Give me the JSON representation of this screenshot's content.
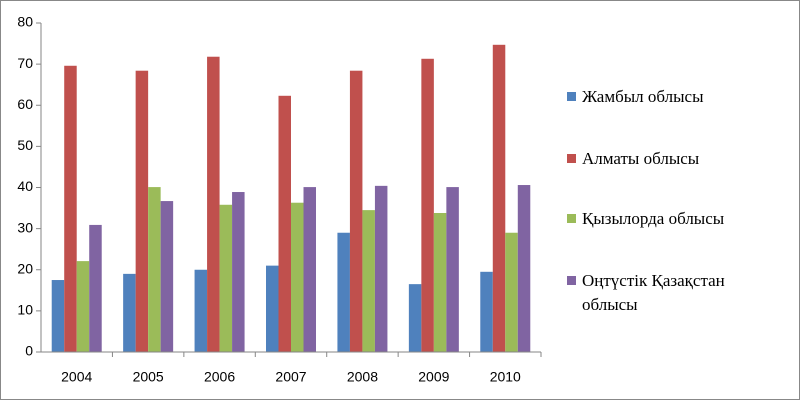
{
  "chart_data": {
    "type": "bar",
    "categories": [
      "2004",
      "2005",
      "2006",
      "2007",
      "2008",
      "2009",
      "2010"
    ],
    "series": [
      {
        "name": "Жамбыл облысы",
        "color": "#4f81bd",
        "values": [
          17.5,
          19,
          20,
          21,
          29,
          16.5,
          19.5
        ]
      },
      {
        "name": "Алматы облысы",
        "color": "#c0504d",
        "values": [
          69.6,
          68.4,
          71.8,
          62.3,
          68.4,
          71.3,
          74.7
        ]
      },
      {
        "name": "Қызылорда облысы",
        "color": "#9bbb59",
        "values": [
          22.1,
          40.1,
          35.8,
          36.3,
          34.5,
          33.8,
          29
        ]
      },
      {
        "name": "Оңтүстік Қазақстан облысы",
        "color": "#8064a2",
        "values": [
          30.9,
          36.7,
          38.9,
          40.1,
          40.4,
          40.1,
          40.6
        ]
      }
    ],
    "ylim": [
      0,
      80
    ],
    "yticks": [
      0,
      10,
      20,
      30,
      40,
      50,
      60,
      70,
      80
    ],
    "grid": false,
    "legend": "right"
  }
}
